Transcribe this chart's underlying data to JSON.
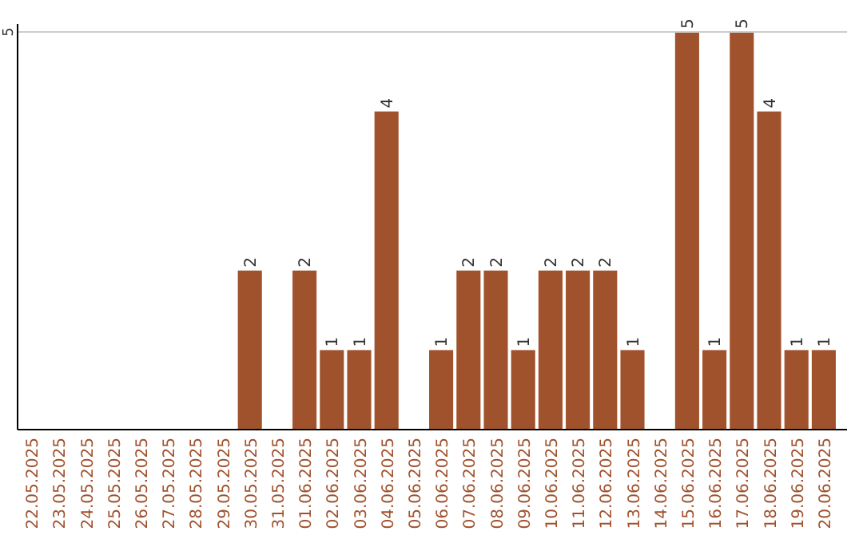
{
  "chart_data": {
    "type": "bar",
    "categories": [
      "22.05.2025",
      "23.05.2025",
      "24.05.2025",
      "25.05.2025",
      "26.05.2025",
      "27.05.2025",
      "28.05.2025",
      "29.05.2025",
      "30.05.2025",
      "31.05.2025",
      "01.06.2025",
      "02.06.2025",
      "03.06.2025",
      "04.06.2025",
      "05.06.2025",
      "06.06.2025",
      "07.06.2025",
      "08.06.2025",
      "09.06.2025",
      "10.06.2025",
      "11.06.2025",
      "12.06.2025",
      "13.06.2025",
      "14.06.2025",
      "15.06.2025",
      "16.06.2025",
      "17.06.2025",
      "18.06.2025",
      "19.06.2025",
      "20.06.2025"
    ],
    "values": [
      0,
      0,
      0,
      0,
      0,
      0,
      0,
      0,
      2,
      0,
      2,
      1,
      1,
      4,
      0,
      1,
      2,
      2,
      1,
      2,
      2,
      2,
      1,
      0,
      5,
      1,
      5,
      4,
      1,
      1
    ],
    "value_labels": [
      null,
      null,
      null,
      null,
      null,
      null,
      null,
      null,
      "2",
      null,
      "2",
      "1",
      "1",
      "4",
      null,
      "1",
      "2",
      "2",
      "1",
      "2",
      "2",
      "2",
      "1",
      null,
      "5",
      "1",
      "5",
      "4",
      "1",
      "1"
    ],
    "color": "#a0522d",
    "ylim": [
      0,
      5
    ],
    "yticks": [
      5
    ],
    "ref_lines": [
      {
        "axis": "y",
        "value": 5,
        "color": "#cccccc"
      }
    ]
  }
}
